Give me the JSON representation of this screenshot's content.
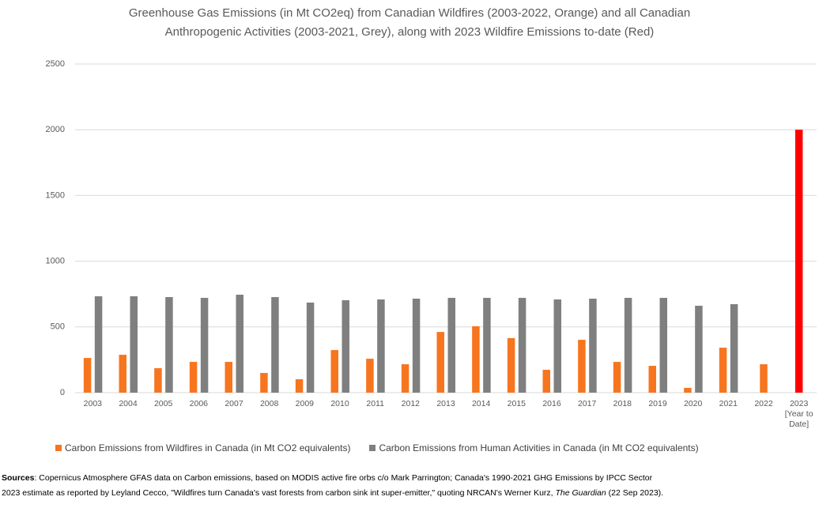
{
  "chart_data": {
    "type": "bar",
    "title": [
      "Greenhouse Gas Emissions (in Mt CO2eq) from Canadian Wildfires (2003-2022, Orange) and all Canadian",
      "Anthropogenic Activities (2003-2021, Grey), along with 2023 Wildfire Emissions to-date (Red)"
    ],
    "categories": [
      "2003",
      "2004",
      "2005",
      "2006",
      "2007",
      "2008",
      "2009",
      "2010",
      "2011",
      "2012",
      "2013",
      "2014",
      "2015",
      "2016",
      "2017",
      "2018",
      "2019",
      "2020",
      "2021",
      "2022",
      "2023 [Year to Date]"
    ],
    "series": [
      {
        "name": "Carbon Emissions from Wildfires in Canada (in Mt CO2 equivalents)",
        "color": "#f7751f",
        "point_colors": [
          "#f7751f",
          "#f7751f",
          "#f7751f",
          "#f7751f",
          "#f7751f",
          "#f7751f",
          "#f7751f",
          "#f7751f",
          "#f7751f",
          "#f7751f",
          "#f7751f",
          "#f7751f",
          "#f7751f",
          "#f7751f",
          "#f7751f",
          "#f7751f",
          "#f7751f",
          "#f7751f",
          "#f7751f",
          "#f7751f",
          "#ff0000"
        ],
        "values": [
          264,
          288,
          186,
          234,
          234,
          150,
          102,
          324,
          258,
          216,
          462,
          505,
          415,
          174,
          402,
          234,
          204,
          36,
          342,
          216,
          2000
        ]
      },
      {
        "name": "Carbon Emissions from Human Activities in Canada (in Mt CO2 equivalents)",
        "color": "#7f7f7f",
        "values": [
          733,
          733,
          727,
          721,
          745,
          727,
          685,
          703,
          709,
          715,
          721,
          721,
          721,
          709,
          715,
          721,
          721,
          661,
          673,
          null,
          null
        ]
      }
    ],
    "ylim": [
      0,
      2500
    ],
    "yticks": [
      0,
      500,
      1000,
      1500,
      2000,
      2500
    ],
    "grid": true
  },
  "sources": {
    "label": "Sources",
    "line1": ": Copernicus Atmosphere GFAS data on Carbon emissions, based on MODIS active fire orbs c/o Mark Parrington; Canada's 1990-2021 GHG Emissions by IPCC Sector",
    "line2": "2023 estimate as reported by Leyland Cecco, \"Wildfires turn Canada's vast forests from carbon sink int super-emitter,\" quoting NRCAN's Werner Kurz, ",
    "italic": "The Guardian",
    "end": " (22 Sep 2023)."
  }
}
